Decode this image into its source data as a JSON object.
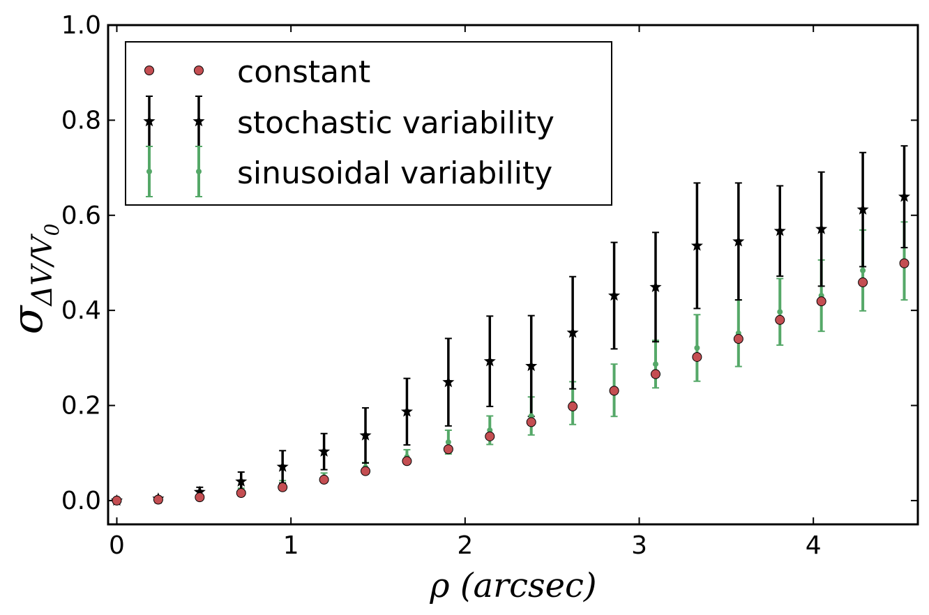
{
  "chart_data": {
    "type": "scatter",
    "xlabel": "ρ (arcsec)",
    "ylabel_symbol": "σ",
    "ylabel_subscript": "ΔV/V",
    "ylabel_subsubscript": "0",
    "xlim": [
      -0.05,
      4.6
    ],
    "ylim": [
      -0.05,
      1.0
    ],
    "xticks": [
      0,
      1,
      2,
      3,
      4
    ],
    "xtick_labels": [
      "0",
      "1",
      "2",
      "3",
      "4"
    ],
    "yticks": [
      0.0,
      0.2,
      0.4,
      0.6,
      0.8,
      1.0
    ],
    "ytick_labels": [
      "0.0",
      "0.2",
      "0.4",
      "0.6",
      "0.8",
      "1.0"
    ],
    "legend_position": "top-left",
    "grid": false,
    "x": [
      0.0,
      0.238,
      0.476,
      0.714,
      0.952,
      1.19,
      1.428,
      1.666,
      1.904,
      2.142,
      2.38,
      2.618,
      2.856,
      3.094,
      3.332,
      3.57,
      3.808,
      4.046,
      4.284,
      4.522
    ],
    "series": [
      {
        "name": "constant",
        "marker": "circle",
        "color": "#c44e52",
        "y": [
          0.0,
          0.002,
          0.007,
          0.016,
          0.028,
          0.044,
          0.062,
          0.083,
          0.108,
          0.135,
          0.165,
          0.198,
          0.231,
          0.266,
          0.302,
          0.34,
          0.38,
          0.419,
          0.459,
          0.499
        ]
      },
      {
        "name": "stochastic variability",
        "marker": "star",
        "color": "#000000",
        "y": [
          0.0,
          0.004,
          0.018,
          0.04,
          0.071,
          0.103,
          0.137,
          0.187,
          0.249,
          0.293,
          0.283,
          0.353,
          0.431,
          0.449,
          0.536,
          0.545,
          0.567,
          0.571,
          0.612,
          0.639
        ],
        "yerr": [
          0.0,
          0.004,
          0.01,
          0.02,
          0.034,
          0.038,
          0.058,
          0.07,
          0.092,
          0.095,
          0.106,
          0.118,
          0.112,
          0.115,
          0.132,
          0.123,
          0.095,
          0.12,
          0.12,
          0.107
        ]
      },
      {
        "name": "sinusoidal variability",
        "marker": "dot",
        "color": "#55a868",
        "y": [
          0.0,
          0.002,
          0.008,
          0.018,
          0.032,
          0.048,
          0.07,
          0.092,
          0.123,
          0.148,
          0.178,
          0.205,
          0.232,
          0.287,
          0.321,
          0.352,
          0.397,
          0.431,
          0.484,
          0.504
        ],
        "yerr": [
          0.0,
          0.002,
          0.004,
          0.008,
          0.01,
          0.01,
          0.01,
          0.015,
          0.025,
          0.03,
          0.04,
          0.045,
          0.055,
          0.05,
          0.07,
          0.07,
          0.07,
          0.075,
          0.085,
          0.082
        ]
      }
    ]
  }
}
